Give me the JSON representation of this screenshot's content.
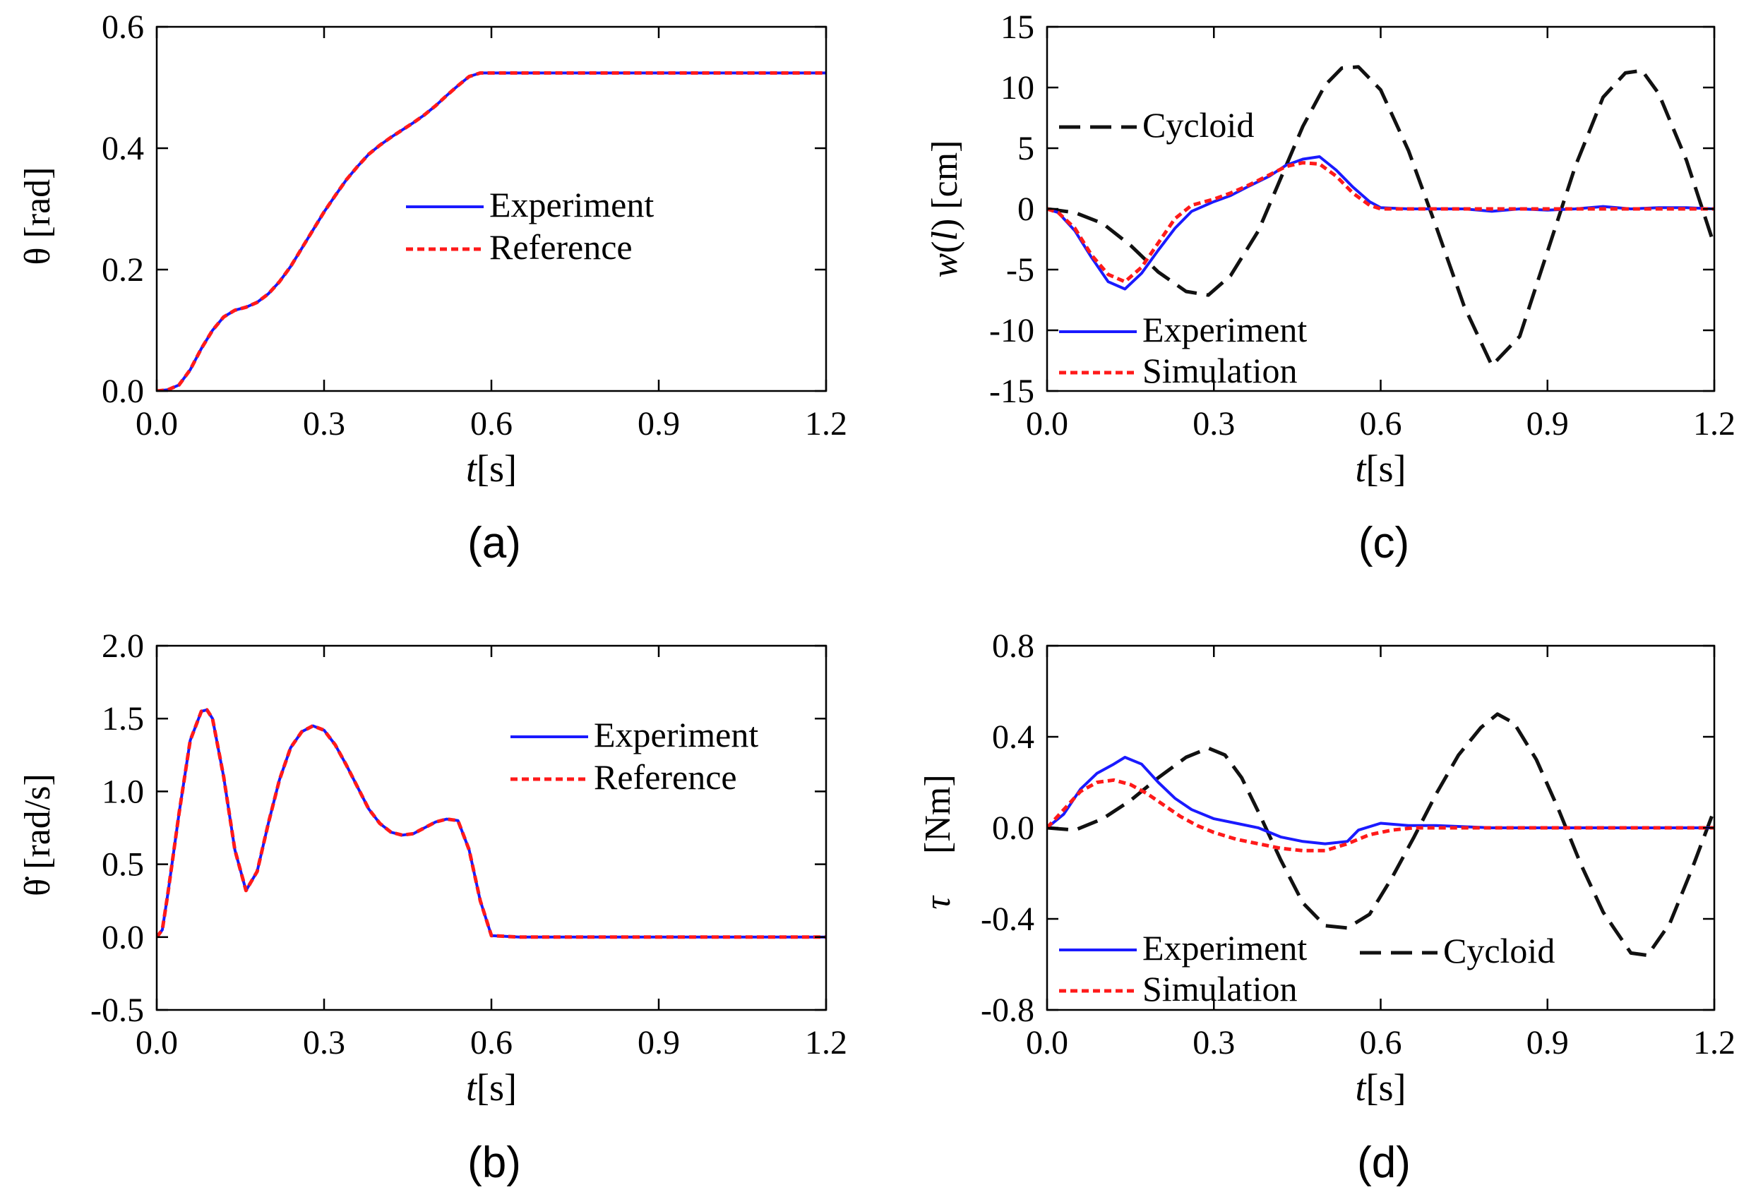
{
  "figure": {
    "colors": {
      "experiment": "#1a1aff",
      "reference": "#ff1a1a",
      "cycloid": "#111111",
      "axes": "#000000"
    }
  },
  "chart_data": [
    {
      "id": "a",
      "type": "line",
      "panel_label": "(a)",
      "xlabel_italic": "t",
      "xlabel_unit": "[s]",
      "ylabel": "θ [rad]",
      "xlim": [
        0,
        1.2
      ],
      "ylim": [
        0,
        0.6
      ],
      "xticks": [
        "0.0",
        "0.3",
        "0.6",
        "0.9",
        "1.2"
      ],
      "yticks": [
        "0.0",
        "0.2",
        "0.4",
        "0.6"
      ],
      "legend_position": "center-right",
      "series": [
        {
          "name": "Experiment",
          "style": "solid",
          "color": "#1a1aff",
          "x": [
            0,
            0.02,
            0.04,
            0.06,
            0.08,
            0.1,
            0.12,
            0.14,
            0.16,
            0.18,
            0.2,
            0.22,
            0.24,
            0.26,
            0.28,
            0.3,
            0.32,
            0.34,
            0.36,
            0.38,
            0.4,
            0.42,
            0.44,
            0.46,
            0.48,
            0.5,
            0.52,
            0.54,
            0.56,
            0.58,
            0.6,
            0.7,
            0.8,
            0.9,
            1.0,
            1.1,
            1.2
          ],
          "y": [
            0,
            0.002,
            0.01,
            0.035,
            0.07,
            0.1,
            0.122,
            0.133,
            0.138,
            0.146,
            0.16,
            0.18,
            0.205,
            0.235,
            0.265,
            0.295,
            0.322,
            0.348,
            0.37,
            0.39,
            0.405,
            0.418,
            0.43,
            0.442,
            0.455,
            0.47,
            0.487,
            0.503,
            0.518,
            0.524,
            0.524,
            0.524,
            0.524,
            0.524,
            0.524,
            0.524,
            0.524
          ]
        },
        {
          "name": "Reference",
          "style": "dotted",
          "color": "#ff1a1a",
          "x": [
            0,
            0.02,
            0.04,
            0.06,
            0.08,
            0.1,
            0.12,
            0.14,
            0.16,
            0.18,
            0.2,
            0.22,
            0.24,
            0.26,
            0.28,
            0.3,
            0.32,
            0.34,
            0.36,
            0.38,
            0.4,
            0.42,
            0.44,
            0.46,
            0.48,
            0.5,
            0.52,
            0.54,
            0.56,
            0.58,
            0.6,
            0.7,
            0.8,
            0.9,
            1.0,
            1.1,
            1.2
          ],
          "y": [
            0,
            0.002,
            0.01,
            0.035,
            0.07,
            0.1,
            0.122,
            0.133,
            0.138,
            0.146,
            0.16,
            0.18,
            0.205,
            0.235,
            0.265,
            0.295,
            0.322,
            0.348,
            0.37,
            0.39,
            0.405,
            0.418,
            0.43,
            0.442,
            0.455,
            0.47,
            0.487,
            0.503,
            0.518,
            0.524,
            0.524,
            0.524,
            0.524,
            0.524,
            0.524,
            0.524,
            0.524
          ]
        }
      ]
    },
    {
      "id": "b",
      "type": "line",
      "panel_label": "(b)",
      "xlabel_italic": "t",
      "xlabel_unit": "[s]",
      "ylabel": "θ̇ [rad/s]",
      "xlim": [
        0,
        1.2
      ],
      "ylim": [
        -0.5,
        2.0
      ],
      "xticks": [
        "0.0",
        "0.3",
        "0.6",
        "0.9",
        "1.2"
      ],
      "yticks": [
        "-0.5",
        "0.0",
        "0.5",
        "1.0",
        "1.5",
        "2.0"
      ],
      "legend_position": "top-right",
      "series": [
        {
          "name": "Experiment",
          "style": "solid",
          "color": "#1a1aff",
          "x": [
            0,
            0.01,
            0.02,
            0.04,
            0.06,
            0.08,
            0.09,
            0.1,
            0.12,
            0.14,
            0.16,
            0.18,
            0.2,
            0.22,
            0.24,
            0.26,
            0.28,
            0.3,
            0.32,
            0.34,
            0.36,
            0.38,
            0.4,
            0.42,
            0.44,
            0.46,
            0.48,
            0.5,
            0.52,
            0.54,
            0.56,
            0.58,
            0.6,
            0.65,
            0.7,
            0.8,
            0.9,
            1.0,
            1.1,
            1.2
          ],
          "y": [
            0,
            0.05,
            0.3,
            0.85,
            1.35,
            1.55,
            1.56,
            1.5,
            1.1,
            0.6,
            0.32,
            0.45,
            0.78,
            1.08,
            1.3,
            1.41,
            1.45,
            1.42,
            1.32,
            1.18,
            1.03,
            0.88,
            0.78,
            0.72,
            0.7,
            0.71,
            0.75,
            0.79,
            0.81,
            0.8,
            0.6,
            0.25,
            0.01,
            0,
            0,
            0,
            0,
            0,
            0,
            0
          ]
        },
        {
          "name": "Reference",
          "style": "dotted",
          "color": "#ff1a1a",
          "x": [
            0,
            0.01,
            0.02,
            0.04,
            0.06,
            0.08,
            0.09,
            0.1,
            0.12,
            0.14,
            0.16,
            0.18,
            0.2,
            0.22,
            0.24,
            0.26,
            0.28,
            0.3,
            0.32,
            0.34,
            0.36,
            0.38,
            0.4,
            0.42,
            0.44,
            0.46,
            0.48,
            0.5,
            0.52,
            0.54,
            0.56,
            0.58,
            0.6,
            0.65,
            0.7,
            0.8,
            0.9,
            1.0,
            1.1,
            1.2
          ],
          "y": [
            0,
            0.05,
            0.3,
            0.85,
            1.35,
            1.55,
            1.56,
            1.5,
            1.1,
            0.6,
            0.32,
            0.45,
            0.78,
            1.08,
            1.3,
            1.41,
            1.45,
            1.42,
            1.32,
            1.18,
            1.03,
            0.88,
            0.78,
            0.72,
            0.7,
            0.71,
            0.75,
            0.79,
            0.81,
            0.8,
            0.6,
            0.25,
            0.01,
            0,
            0,
            0,
            0,
            0,
            0,
            0
          ]
        }
      ]
    },
    {
      "id": "c",
      "type": "line",
      "panel_label": "(c)",
      "xlabel_italic": "t",
      "xlabel_unit": "[s]",
      "ylabel_italic": "w",
      "ylabel_arg": "l",
      "ylabel_unit": "[cm]",
      "xlim": [
        0,
        1.2
      ],
      "ylim": [
        -15,
        15
      ],
      "xticks": [
        "0.0",
        "0.3",
        "0.6",
        "0.9",
        "1.2"
      ],
      "yticks": [
        "-15",
        "-10",
        "-5",
        "0",
        "5",
        "10",
        "15"
      ],
      "legend_position": "top-left / bottom-left",
      "series": [
        {
          "name": "Cycloid",
          "style": "dashed",
          "color": "#111111",
          "x": [
            0,
            0.05,
            0.1,
            0.15,
            0.2,
            0.25,
            0.29,
            0.33,
            0.38,
            0.42,
            0.46,
            0.5,
            0.53,
            0.56,
            0.6,
            0.65,
            0.7,
            0.75,
            0.8,
            0.85,
            0.9,
            0.95,
            1.0,
            1.04,
            1.07,
            1.1,
            1.15,
            1.2
          ],
          "y": [
            0,
            -0.3,
            -1.2,
            -3,
            -5.2,
            -6.8,
            -7.1,
            -5.5,
            -1.8,
            2.5,
            6.8,
            10.2,
            11.6,
            11.7,
            9.8,
            4.8,
            -1.5,
            -8,
            -12.9,
            -10.5,
            -3.5,
            3.5,
            9.2,
            11.2,
            11.4,
            9.5,
            4,
            -3
          ]
        },
        {
          "name": "Experiment",
          "style": "solid",
          "color": "#1a1aff",
          "x": [
            0,
            0.02,
            0.05,
            0.08,
            0.11,
            0.14,
            0.17,
            0.2,
            0.23,
            0.26,
            0.3,
            0.33,
            0.36,
            0.4,
            0.43,
            0.46,
            0.49,
            0.52,
            0.55,
            0.58,
            0.6,
            0.65,
            0.7,
            0.75,
            0.8,
            0.85,
            0.9,
            0.95,
            1.0,
            1.05,
            1.1,
            1.15,
            1.2
          ],
          "y": [
            0,
            -0.3,
            -1.8,
            -4,
            -6,
            -6.6,
            -5.3,
            -3.4,
            -1.6,
            -0.2,
            0.6,
            1.1,
            1.8,
            2.7,
            3.6,
            4.1,
            4.3,
            3.2,
            1.8,
            0.6,
            0.1,
            0,
            0,
            0,
            -0.2,
            0,
            -0.1,
            0,
            0.2,
            0,
            0.1,
            0.1,
            0
          ]
        },
        {
          "name": "Simulation",
          "style": "dotted",
          "color": "#ff1a1a",
          "x": [
            0,
            0.02,
            0.05,
            0.08,
            0.11,
            0.14,
            0.17,
            0.2,
            0.23,
            0.26,
            0.3,
            0.33,
            0.36,
            0.4,
            0.43,
            0.46,
            0.49,
            0.52,
            0.55,
            0.58,
            0.6,
            0.65,
            0.7,
            0.75,
            0.8,
            0.85,
            0.9,
            0.95,
            1.0,
            1.05,
            1.1,
            1.15,
            1.2
          ],
          "y": [
            0,
            -0.3,
            -1.6,
            -3.8,
            -5.4,
            -6,
            -4.8,
            -2.8,
            -0.8,
            0.3,
            0.8,
            1.3,
            1.9,
            2.8,
            3.5,
            3.8,
            3.7,
            2.7,
            1.3,
            0.3,
            0,
            0,
            0,
            0,
            0,
            0,
            0,
            0,
            0,
            0,
            0,
            0,
            0
          ]
        }
      ]
    },
    {
      "id": "d",
      "type": "line",
      "panel_label": "(d)",
      "xlabel_italic": "t",
      "xlabel_unit": "[s]",
      "ylabel_italic": "τ",
      "ylabel_unit": "[Nm]",
      "xlim": [
        0,
        1.2
      ],
      "ylim": [
        -0.8,
        0.8
      ],
      "xticks": [
        "0.0",
        "0.3",
        "0.6",
        "0.9",
        "1.2"
      ],
      "yticks": [
        "-0.8",
        "-0.4",
        "0.0",
        "0.4",
        "0.8"
      ],
      "legend_position": "bottom",
      "series": [
        {
          "name": "Cycloid",
          "style": "dashed",
          "color": "#111111",
          "x": [
            0,
            0.05,
            0.1,
            0.15,
            0.2,
            0.25,
            0.29,
            0.32,
            0.35,
            0.38,
            0.42,
            0.46,
            0.5,
            0.54,
            0.58,
            0.62,
            0.66,
            0.7,
            0.74,
            0.78,
            0.81,
            0.84,
            0.88,
            0.92,
            0.96,
            1.0,
            1.05,
            1.08,
            1.12,
            1.16,
            1.2
          ],
          "y": [
            0,
            -0.01,
            0.04,
            0.12,
            0.22,
            0.31,
            0.35,
            0.32,
            0.22,
            0.07,
            -0.14,
            -0.33,
            -0.43,
            -0.44,
            -0.38,
            -0.22,
            -0.04,
            0.15,
            0.32,
            0.44,
            0.5,
            0.46,
            0.3,
            0.08,
            -0.16,
            -0.37,
            -0.55,
            -0.56,
            -0.42,
            -0.18,
            0.08
          ]
        },
        {
          "name": "Experiment",
          "style": "solid",
          "color": "#1a1aff",
          "x": [
            0,
            0.03,
            0.06,
            0.09,
            0.12,
            0.14,
            0.17,
            0.2,
            0.23,
            0.26,
            0.3,
            0.34,
            0.38,
            0.42,
            0.46,
            0.5,
            0.54,
            0.56,
            0.6,
            0.65,
            0.7,
            0.8,
            0.9,
            1.0,
            1.1,
            1.2
          ],
          "y": [
            0,
            0.06,
            0.17,
            0.24,
            0.28,
            0.31,
            0.28,
            0.2,
            0.13,
            0.08,
            0.04,
            0.02,
            0,
            -0.04,
            -0.06,
            -0.07,
            -0.06,
            -0.01,
            0.02,
            0.01,
            0.01,
            0,
            0,
            0,
            0,
            0
          ]
        },
        {
          "name": "Simulation",
          "style": "dotted",
          "color": "#ff1a1a",
          "x": [
            0,
            0.03,
            0.06,
            0.09,
            0.12,
            0.15,
            0.18,
            0.21,
            0.24,
            0.27,
            0.3,
            0.34,
            0.38,
            0.42,
            0.46,
            0.5,
            0.54,
            0.58,
            0.62,
            0.66,
            0.7,
            0.8,
            0.9,
            1.0,
            1.1,
            1.2
          ],
          "y": [
            0,
            0.08,
            0.16,
            0.2,
            0.21,
            0.19,
            0.15,
            0.1,
            0.05,
            0.01,
            -0.02,
            -0.05,
            -0.07,
            -0.09,
            -0.1,
            -0.1,
            -0.07,
            -0.03,
            -0.01,
            0,
            0,
            0,
            0,
            0,
            0,
            0
          ]
        }
      ]
    }
  ]
}
